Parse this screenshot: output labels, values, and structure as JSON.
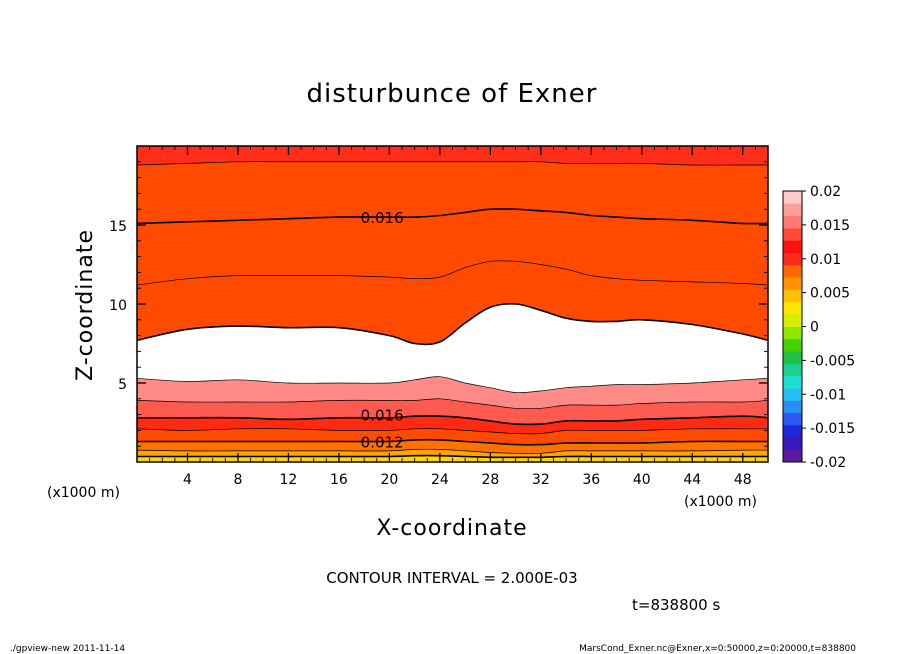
{
  "chart_data": {
    "type": "contour",
    "title": "disturbunce of Exner",
    "xlabel": "X-coordinate",
    "ylabel": "Z-coordinate",
    "x_unit_left": "(x1000 m)",
    "x_unit_right": "(x1000 m)",
    "xlim": [
      0,
      50
    ],
    "ylim": [
      0,
      20
    ],
    "x_ticks": [
      4,
      8,
      12,
      16,
      20,
      24,
      28,
      32,
      36,
      40,
      44,
      48
    ],
    "y_ticks": [
      5,
      10,
      15
    ],
    "contour_labels": [
      {
        "text": "0.016",
        "x": 18,
        "z": 15.5
      },
      {
        "text": "0.016",
        "x": 18,
        "z": 3.0
      },
      {
        "text": "0.012",
        "x": 18,
        "z": 1.3
      }
    ],
    "colorbar": {
      "labels": [
        "0.02",
        "0.015",
        "0.01",
        "0.005",
        "0",
        "-0.005",
        "-0.01",
        "-0.015",
        "-0.02"
      ],
      "colors": [
        "#5a1aa0",
        "#3a18b8",
        "#1e28d8",
        "#2a58f0",
        "#2a8ef6",
        "#22bff2",
        "#1ee0d2",
        "#1cd090",
        "#20c040",
        "#44d200",
        "#8ee600",
        "#d8ee00",
        "#ffe400",
        "#ffc000",
        "#ff9400",
        "#ff6a00",
        "#ff2a1a",
        "#ff1010",
        "#ff4a3a",
        "#ff7a72",
        "#ff9f9c",
        "#ffc9c7"
      ]
    },
    "contour_interval": "CONTOUR INTERVAL = 2.000E-03",
    "time": "t=838800 s",
    "footer_left": "./gpview-new   2011-11-14",
    "footer_right": "MarsCond_Exner.nc@Exner,x=0:50000,z=0:20000,t=838800",
    "levels": [
      0.006,
      0.008,
      0.01,
      0.012,
      0.014,
      0.016,
      0.018,
      0.02
    ],
    "band_colors": [
      "#ffd400",
      "#ffa400",
      "#ff7200",
      "#ff4a00",
      "#ff2a12",
      "#ff5a50",
      "#ff8a86",
      "#ffffff"
    ],
    "profile_x": [
      0,
      4,
      8,
      12,
      16,
      20,
      22,
      24,
      26,
      28,
      30,
      32,
      34,
      36,
      38,
      40,
      44,
      48,
      50
    ],
    "upper_contours": [
      {
        "level": 0.018,
        "z": [
          18.8,
          18.9,
          19.0,
          19.0,
          19.0,
          19.0,
          19.0,
          19.0,
          19.0,
          19.0,
          19.0,
          19.0,
          18.9,
          18.9,
          18.9,
          18.9,
          18.8,
          18.8,
          18.8
        ]
      },
      {
        "level": 0.016,
        "z": [
          15.1,
          15.2,
          15.3,
          15.4,
          15.5,
          15.5,
          15.5,
          15.6,
          15.8,
          16.0,
          16.0,
          15.9,
          15.8,
          15.6,
          15.5,
          15.4,
          15.3,
          15.1,
          15.1
        ]
      },
      {
        "level": 0.014,
        "z": [
          11.2,
          11.6,
          11.8,
          11.8,
          11.8,
          11.7,
          11.6,
          11.7,
          12.3,
          12.7,
          12.7,
          12.5,
          12.2,
          11.8,
          11.6,
          11.5,
          11.4,
          11.3,
          11.2
        ]
      },
      {
        "level": 0.012,
        "z": [
          7.7,
          8.4,
          8.6,
          8.5,
          8.5,
          8.0,
          7.5,
          7.6,
          8.8,
          9.8,
          10.0,
          9.6,
          9.1,
          8.9,
          8.9,
          9.0,
          8.7,
          8.1,
          7.7
        ]
      }
    ],
    "lower_contours": [
      {
        "level": 0.02,
        "z": [
          5.3,
          5.1,
          5.2,
          5.0,
          5.0,
          5.0,
          5.2,
          5.4,
          5.0,
          4.7,
          4.4,
          4.5,
          4.7,
          4.8,
          4.9,
          4.9,
          5.0,
          5.2,
          5.3
        ]
      },
      {
        "level": 0.018,
        "z": [
          3.9,
          3.8,
          3.8,
          3.8,
          3.9,
          3.9,
          3.9,
          4.0,
          3.8,
          3.6,
          3.4,
          3.4,
          3.6,
          3.6,
          3.6,
          3.7,
          3.8,
          3.8,
          3.9
        ]
      },
      {
        "level": 0.016,
        "z": [
          2.8,
          2.8,
          2.8,
          2.7,
          2.8,
          2.8,
          2.9,
          2.9,
          2.8,
          2.6,
          2.4,
          2.4,
          2.6,
          2.6,
          2.6,
          2.7,
          2.8,
          2.9,
          2.8
        ]
      },
      {
        "level": 0.014,
        "z": [
          2.1,
          2.0,
          2.1,
          2.1,
          2.0,
          2.0,
          2.1,
          2.1,
          2.0,
          1.9,
          1.8,
          1.8,
          2.0,
          2.0,
          2.0,
          2.0,
          2.1,
          2.1,
          2.1
        ]
      },
      {
        "level": 0.012,
        "z": [
          1.3,
          1.3,
          1.3,
          1.3,
          1.3,
          1.3,
          1.4,
          1.4,
          1.3,
          1.2,
          1.1,
          1.1,
          1.2,
          1.2,
          1.2,
          1.2,
          1.3,
          1.3,
          1.3
        ]
      },
      {
        "level": 0.01,
        "z": [
          0.75,
          0.7,
          0.7,
          0.7,
          0.7,
          0.7,
          0.8,
          0.8,
          0.7,
          0.6,
          0.55,
          0.55,
          0.7,
          0.7,
          0.7,
          0.7,
          0.7,
          0.75,
          0.75
        ]
      },
      {
        "level": 0.008,
        "z": [
          0.35,
          0.35,
          0.35,
          0.35,
          0.35,
          0.35,
          0.4,
          0.4,
          0.35,
          0.3,
          0.3,
          0.3,
          0.35,
          0.35,
          0.35,
          0.35,
          0.35,
          0.35,
          0.35
        ]
      }
    ]
  }
}
